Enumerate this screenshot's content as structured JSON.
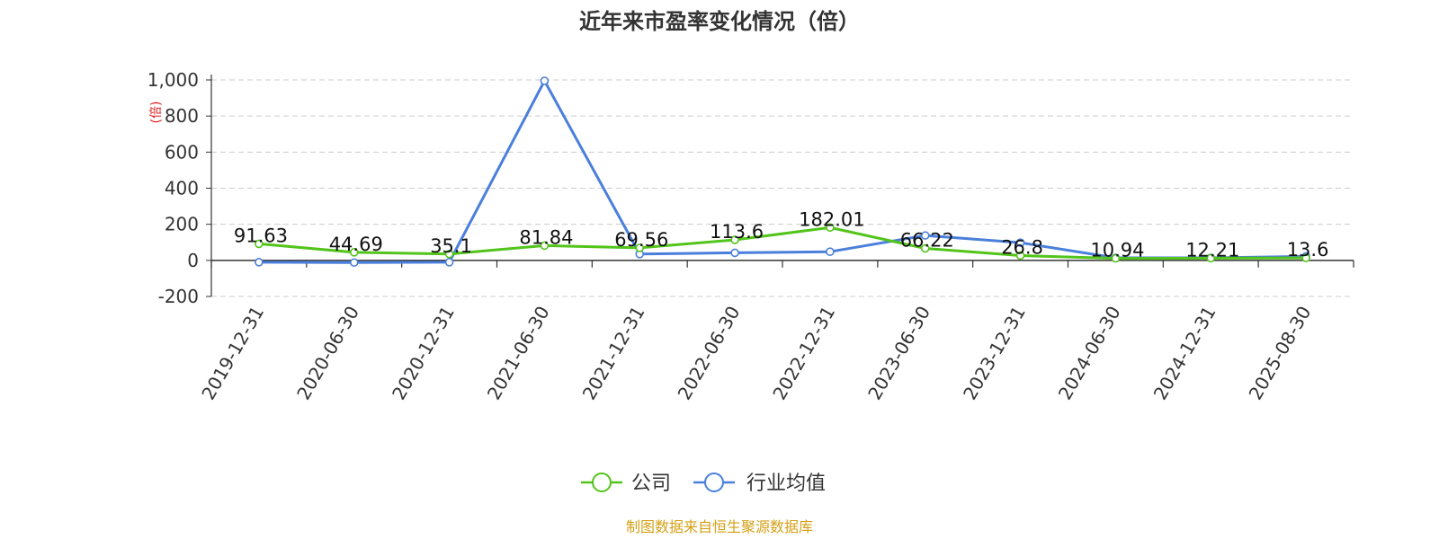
{
  "chart_data": {
    "type": "line",
    "title": "近年来市盈率变化情况（倍）",
    "ylabel": "(倍)",
    "source": "制图数据来自恒生聚源数据库",
    "categories": [
      "2019-12-31",
      "2020-06-30",
      "2020-12-31",
      "2021-06-30",
      "2021-12-31",
      "2022-06-30",
      "2022-12-31",
      "2023-06-30",
      "2023-12-31",
      "2024-06-30",
      "2024-12-31",
      "2025-08-30"
    ],
    "ylim": [
      -200,
      1000
    ],
    "yticks": [
      -200,
      0,
      200,
      400,
      600,
      800,
      1000
    ],
    "ytick_labels": [
      "-200",
      "0",
      "200",
      "400",
      "600",
      "800",
      "1,000"
    ],
    "grid": true,
    "legend_position": "bottom-center",
    "series": [
      {
        "name": "公司",
        "color": "#52c41a",
        "values": [
          91.63,
          44.69,
          35.1,
          81.84,
          69.56,
          113.6,
          182.01,
          66.22,
          26.8,
          10.94,
          12.21,
          13.6
        ],
        "labels": [
          "91.63",
          "44.69",
          "35.1",
          "81.84",
          "69.56",
          "113.6",
          "182.01",
          "66.22",
          "26.8",
          "10.94",
          "12.21",
          "13.6"
        ]
      },
      {
        "name": "行业均值",
        "color": "#4a7fdb",
        "values": [
          -10,
          -12,
          -10,
          995,
          35,
          42,
          48,
          138,
          98,
          14,
          14,
          22
        ]
      }
    ]
  }
}
